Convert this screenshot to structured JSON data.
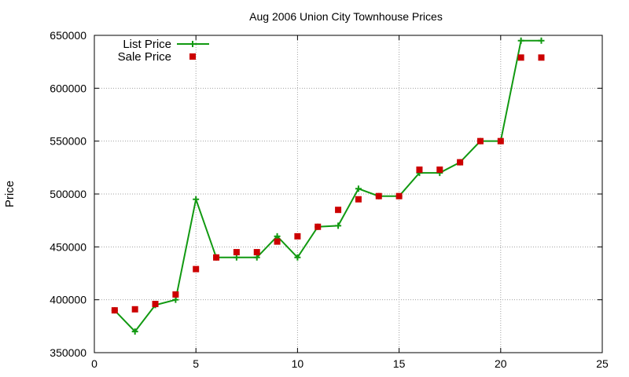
{
  "chart_data": {
    "type": "line",
    "title": "Aug 2006 Union City Townhouse Prices",
    "xlabel": "",
    "ylabel": "Price",
    "xlim": [
      0,
      25
    ],
    "ylim": [
      350000,
      650000
    ],
    "x_ticks": [
      0,
      5,
      10,
      15,
      20,
      25
    ],
    "y_ticks": [
      350000,
      400000,
      450000,
      500000,
      550000,
      600000,
      650000
    ],
    "grid": true,
    "legend_position": "top-left",
    "series": [
      {
        "name": "List Price",
        "style": "line+cross",
        "color": "#119911",
        "x": [
          1,
          2,
          3,
          4,
          5,
          6,
          7,
          8,
          9,
          10,
          11,
          12,
          13,
          14,
          15,
          16,
          17,
          18,
          19,
          20,
          21,
          22
        ],
        "y": [
          390000,
          370000,
          395000,
          400000,
          495000,
          440000,
          440000,
          440000,
          460000,
          440000,
          469000,
          470000,
          505000,
          498000,
          498000,
          520000,
          520000,
          530000,
          550000,
          550000,
          645000,
          645000
        ]
      },
      {
        "name": "Sale Price",
        "style": "square-points",
        "color": "#cc0000",
        "x": [
          1,
          2,
          3,
          4,
          5,
          6,
          7,
          8,
          9,
          10,
          11,
          12,
          13,
          14,
          15,
          16,
          17,
          18,
          19,
          20,
          21,
          22
        ],
        "y": [
          390000,
          391000,
          396000,
          405000,
          429000,
          440000,
          445000,
          445000,
          455000,
          460000,
          469000,
          485000,
          495000,
          498000,
          498000,
          523000,
          523000,
          530000,
          550000,
          550000,
          629000,
          629000
        ]
      }
    ]
  }
}
